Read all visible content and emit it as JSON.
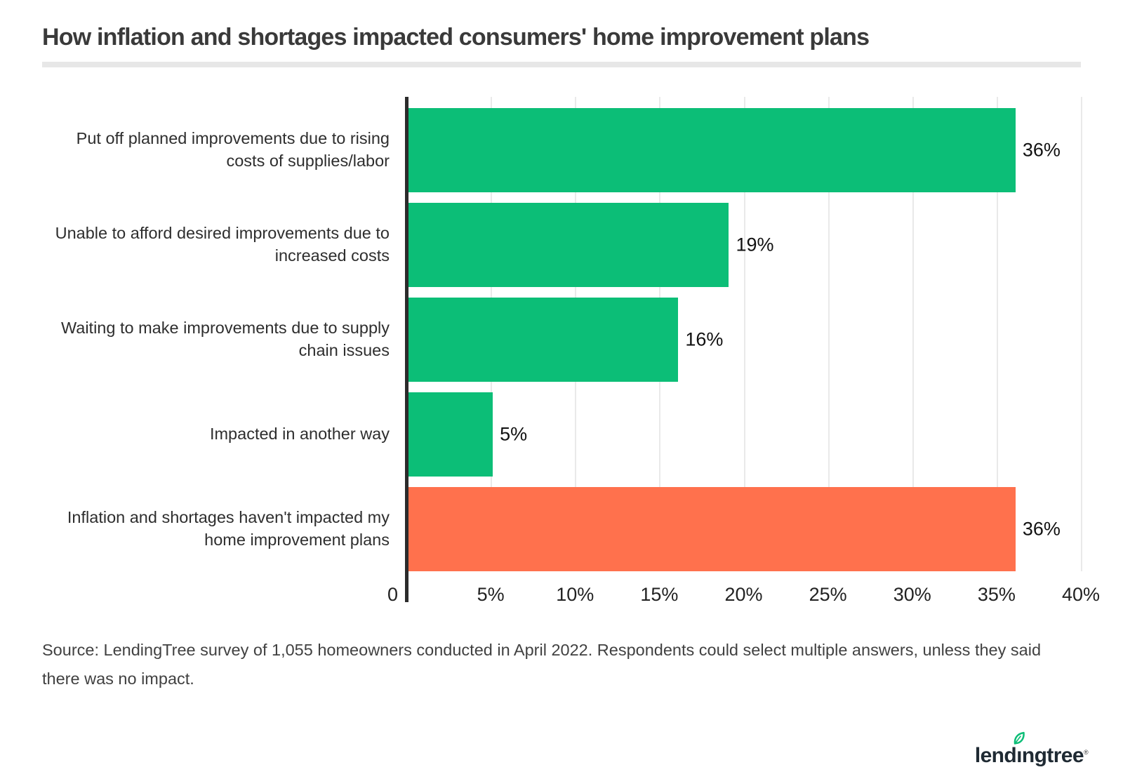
{
  "title": "How inflation and shortages impacted consumers' home improvement plans",
  "chart_data": {
    "type": "bar",
    "orientation": "horizontal",
    "title": "How inflation and shortages impacted consumers' home improvement plans",
    "categories": [
      "Put off planned improvements due to rising costs of supplies/labor",
      "Unable to afford desired improvements due to increased costs",
      "Waiting to make improvements due to supply chain issues",
      "Impacted in another way",
      "Inflation and shortages haven't impacted my home improvement plans"
    ],
    "values": [
      36,
      19,
      16,
      5,
      36
    ],
    "value_labels": [
      "36%",
      "19%",
      "16%",
      "5%",
      "36%"
    ],
    "bar_colors": [
      "#0cbe77",
      "#0cbe77",
      "#0cbe77",
      "#0cbe77",
      "#ff714d"
    ],
    "xlabel": "",
    "ylabel": "",
    "xlim": [
      0,
      40
    ],
    "x_ticks": [
      "0",
      "5%",
      "10%",
      "15%",
      "20%",
      "25%",
      "30%",
      "35%",
      "40%"
    ],
    "grid": true,
    "legend": "none"
  },
  "source": {
    "text": "Source: LendingTree survey of 1,055 homeowners conducted in April 2022. Respondents could select multiple answers, unless they said there was no impact."
  },
  "footer": {
    "brand": "lendingtree",
    "wordmark_left": "lend",
    "wordmark_right": "ıngtree",
    "trademark": "®"
  },
  "colors": {
    "green": "#0cbe77",
    "orange": "#ff714d",
    "grid": "#e9e9e9",
    "axis": "#2b2b2b",
    "title_rule": "#e7e7e7"
  }
}
